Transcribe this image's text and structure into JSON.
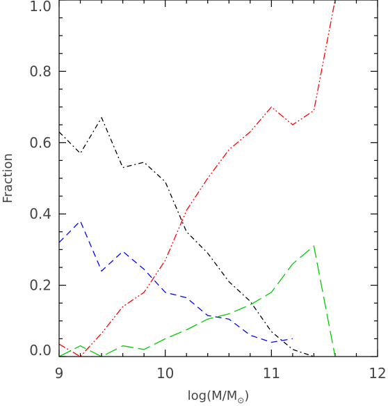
{
  "chart_data": {
    "type": "line",
    "xlabel": "log(M/M",
    "xlabel_sub": "⊙",
    "xlabel_end": ")",
    "ylabel": "Fraction",
    "xlim": [
      9,
      12
    ],
    "ylim": [
      0,
      1.0
    ],
    "x_ticks": [
      "9",
      "10",
      "11",
      "12"
    ],
    "y_ticks": [
      "0.0",
      "0.2",
      "0.4",
      "0.6",
      "0.8",
      "1.0"
    ],
    "grid": false,
    "series": [
      {
        "color": "#000000",
        "style": "dash-dot",
        "x": [
          9.0,
          9.2,
          9.4,
          9.6,
          9.8,
          10.0,
          10.2,
          10.4,
          10.6,
          10.8,
          11.0,
          11.2,
          11.4
        ],
        "y": [
          0.63,
          0.57,
          0.67,
          0.53,
          0.545,
          0.49,
          0.35,
          0.29,
          0.21,
          0.155,
          0.07,
          0.02,
          0.0
        ]
      },
      {
        "color": "#ff0000",
        "style": "dash-dot-dot",
        "x": [
          9.0,
          9.2,
          9.4,
          9.6,
          9.8,
          10.0,
          10.2,
          10.4,
          10.6,
          10.8,
          11.0,
          11.2,
          11.4,
          11.6
        ],
        "y": [
          0.035,
          0.0,
          0.065,
          0.14,
          0.18,
          0.27,
          0.41,
          0.5,
          0.58,
          0.63,
          0.7,
          0.65,
          0.69,
          1.0
        ]
      },
      {
        "color": "#0000ff",
        "style": "dash",
        "x": [
          9.0,
          9.2,
          9.4,
          9.6,
          9.8,
          10.0,
          10.2,
          10.4,
          10.6,
          10.8,
          11.0,
          11.2
        ],
        "y": [
          0.32,
          0.38,
          0.24,
          0.295,
          0.245,
          0.18,
          0.165,
          0.115,
          0.105,
          0.06,
          0.04,
          0.05
        ]
      },
      {
        "color": "#00cc00",
        "style": "long-dash",
        "x": [
          9.0,
          9.2,
          9.4,
          9.6,
          9.8,
          10.0,
          10.2,
          10.4,
          10.6,
          10.8,
          11.0,
          11.2,
          11.4,
          11.6
        ],
        "y": [
          0.0,
          0.03,
          0.0,
          0.03,
          0.02,
          0.05,
          0.075,
          0.105,
          0.12,
          0.145,
          0.18,
          0.26,
          0.31,
          0.0
        ]
      }
    ]
  }
}
